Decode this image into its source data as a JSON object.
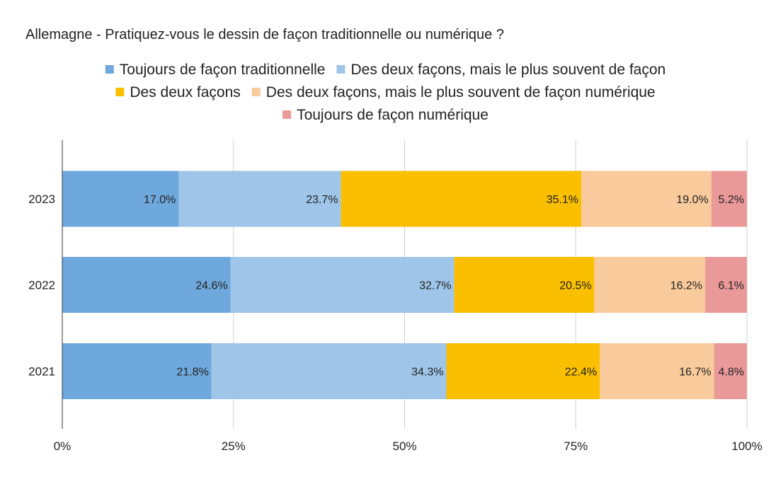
{
  "chart_data": {
    "type": "bar",
    "orientation": "horizontal",
    "stacked": "percent",
    "title": "Allemagne - Pratiquez-vous le dessin de façon traditionnelle ou numérique ?",
    "categories": [
      "2023",
      "2022",
      "2021"
    ],
    "series": [
      {
        "name": "Toujours de façon traditionnelle",
        "color": "#6fa8dc",
        "values": [
          17.0,
          24.6,
          21.8
        ],
        "labels": [
          "17.0%",
          "24.6%",
          "21.8%"
        ]
      },
      {
        "name": "Des deux façons, mais le plus souvent de façon",
        "color": "#9fc5e8",
        "values": [
          23.7,
          32.7,
          34.3
        ],
        "labels": [
          "23.7%",
          "32.7%",
          "34.3%"
        ]
      },
      {
        "name": "Des deux façons",
        "color": "#f9bf00",
        "values": [
          35.1,
          20.5,
          22.4
        ],
        "labels": [
          "35.1%",
          "20.5%",
          "22.4%"
        ]
      },
      {
        "name": "Des deux façons, mais le plus souvent de façon numérique",
        "color": "#f9cb9c",
        "values": [
          19.0,
          16.2,
          16.7
        ],
        "labels": [
          "19.0%",
          "16.2%",
          "16.7%"
        ]
      },
      {
        "name": "Toujours de façon numérique",
        "color": "#ea9999",
        "values": [
          5.2,
          6.1,
          4.8
        ],
        "labels": [
          "5.2%",
          "6.1%",
          "4.8%"
        ]
      }
    ],
    "xlim": [
      0,
      100
    ],
    "xticks": [
      "0%",
      "25%",
      "50%",
      "75%",
      "100%"
    ],
    "grid": true,
    "legend_position": "top"
  }
}
